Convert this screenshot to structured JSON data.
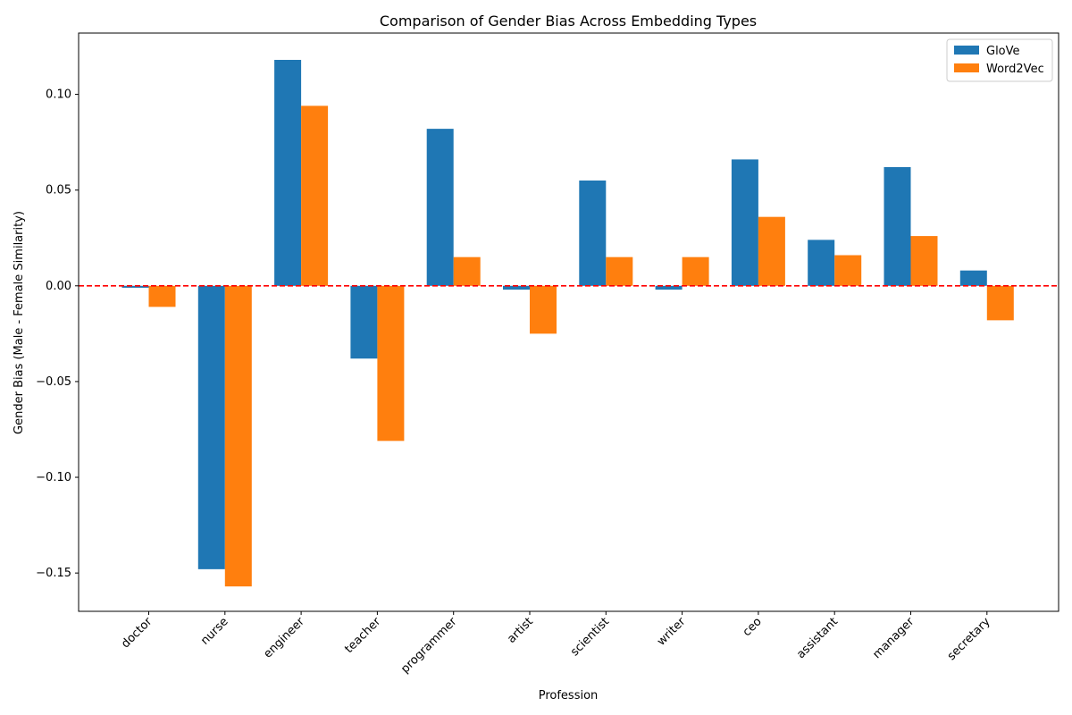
{
  "chart_data": {
    "type": "bar",
    "title": "Comparison of Gender Bias Across Embedding Types",
    "xlabel": "Profession",
    "ylabel": "Gender Bias (Male - Female Similarity)",
    "categories": [
      "doctor",
      "nurse",
      "engineer",
      "teacher",
      "programmer",
      "artist",
      "scientist",
      "writer",
      "ceo",
      "assistant",
      "manager",
      "secretary"
    ],
    "series": [
      {
        "name": "GloVe",
        "color": "#1f77b4",
        "values": [
          -0.001,
          -0.148,
          0.118,
          -0.038,
          0.082,
          -0.002,
          0.055,
          -0.002,
          0.066,
          0.024,
          0.062,
          0.008
        ]
      },
      {
        "name": "Word2Vec",
        "color": "#ff7f0e",
        "values": [
          -0.011,
          -0.157,
          0.094,
          -0.081,
          0.015,
          -0.025,
          0.015,
          0.015,
          0.036,
          0.016,
          0.026,
          -0.018
        ]
      }
    ],
    "ylim": [
      -0.17,
      0.132
    ],
    "yticks": [
      -0.15,
      -0.1,
      -0.05,
      0.0,
      0.05,
      0.1
    ],
    "ytick_labels": [
      "−0.15",
      "−0.10",
      "−0.05",
      "0.00",
      "0.05",
      "0.10"
    ],
    "reference_line": {
      "y": 0.0,
      "color": "#ff0000",
      "style": "dashed"
    },
    "legend_position": "top-right",
    "grid": false
  }
}
